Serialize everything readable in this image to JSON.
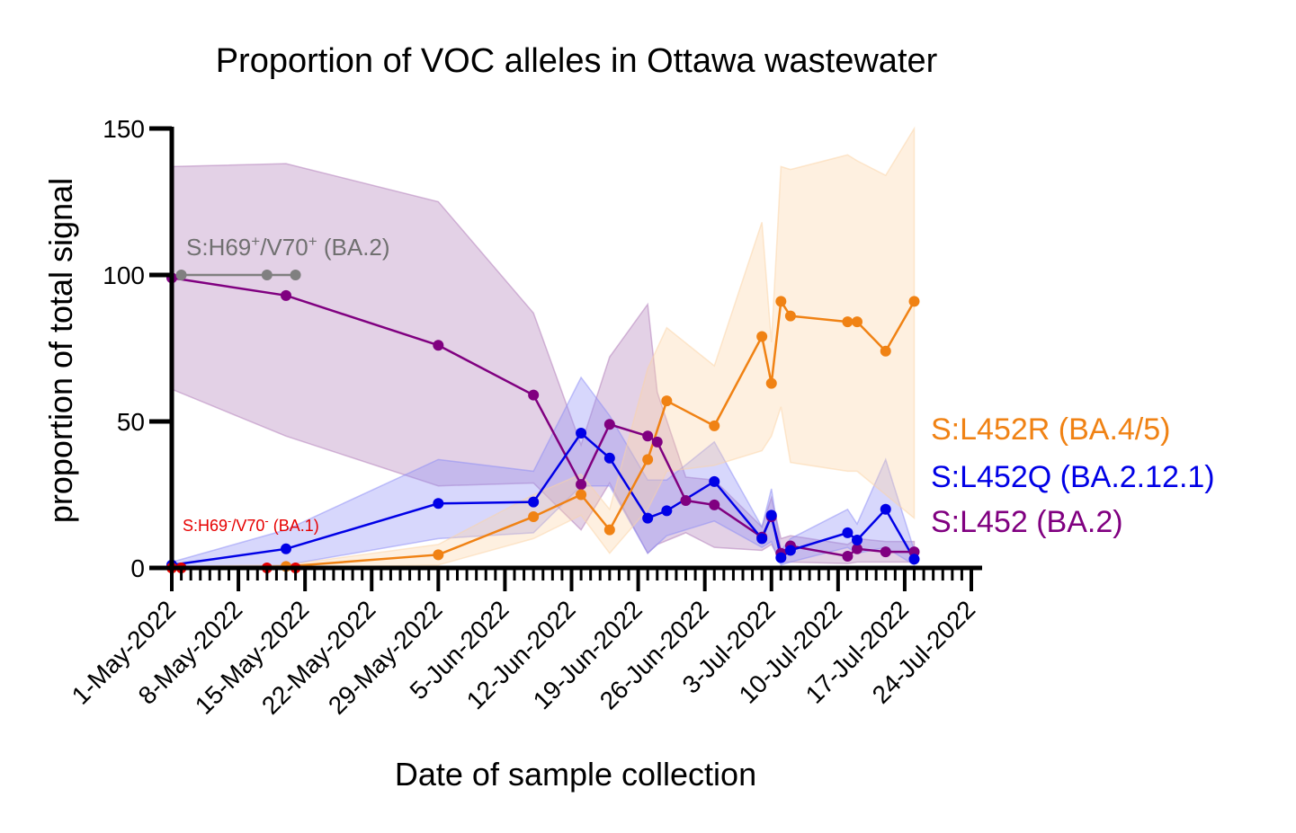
{
  "chart_data": {
    "type": "line",
    "title": "Proportion of VOC alleles in Ottawa wastewater",
    "xlabel": "Date of sample collection",
    "ylabel": "proportion of total signal",
    "ylim": [
      0,
      150
    ],
    "xlim_days": [
      0,
      84
    ],
    "yticks": [
      0,
      50,
      100,
      150
    ],
    "xticks": [
      {
        "day": 0,
        "label": "1-May-2022"
      },
      {
        "day": 7,
        "label": "8-May-2022"
      },
      {
        "day": 14,
        "label": "15-May-2022"
      },
      {
        "day": 21,
        "label": "22-May-2022"
      },
      {
        "day": 28,
        "label": "29-May-2022"
      },
      {
        "day": 35,
        "label": "5-Jun-2022"
      },
      {
        "day": 42,
        "label": "12-Jun-2022"
      },
      {
        "day": 49,
        "label": "19-Jun-2022"
      },
      {
        "day": 56,
        "label": "26-Jun-2022"
      },
      {
        "day": 63,
        "label": "3-Jul-2022"
      },
      {
        "day": 70,
        "label": "10-Jul-2022"
      },
      {
        "day": 77,
        "label": "17-Jul-2022"
      },
      {
        "day": 84,
        "label": "24-Jul-2022"
      }
    ],
    "legend_position": "right",
    "series": [
      {
        "name": "S:L452 (BA.2)",
        "color": "#800080",
        "band_color": "#b07ab8",
        "x": [
          0,
          12,
          28,
          38,
          43,
          46,
          50,
          51,
          54,
          57,
          62,
          63,
          64,
          65,
          71,
          72,
          75,
          78
        ],
        "y": [
          99,
          93,
          76,
          59,
          28.5,
          49,
          45,
          43,
          23,
          21.5,
          10.5,
          17.5,
          5,
          7.5,
          4,
          6.5,
          5.5,
          5.5
        ],
        "lower": [
          61,
          45,
          28,
          29,
          13,
          29,
          5,
          8,
          12,
          7,
          6,
          8,
          2,
          2,
          1.5,
          2,
          2,
          2
        ],
        "upper": [
          137,
          138,
          125,
          87,
          42,
          72,
          90,
          60,
          31,
          30,
          14,
          24,
          10,
          11,
          8,
          10,
          9,
          9
        ]
      },
      {
        "name": "S:L452Q (BA.2.12.1)",
        "color": "#0000e6",
        "band_color": "#8c8cf5",
        "x": [
          0,
          12,
          28,
          38,
          43,
          46,
          50,
          52,
          57,
          62,
          63,
          64,
          65,
          71,
          72,
          75,
          78
        ],
        "y": [
          1,
          6.5,
          22,
          22.5,
          46,
          37.5,
          17,
          19.5,
          29.5,
          10,
          18,
          3.5,
          6,
          12,
          9.5,
          20,
          3
        ],
        "lower": [
          0,
          1,
          10,
          12,
          28,
          28,
          5,
          11,
          16,
          7,
          9,
          1,
          2,
          7,
          5,
          7,
          1
        ],
        "upper": [
          2,
          13,
          37,
          33,
          65,
          52,
          30,
          30,
          43,
          14,
          27,
          6,
          10,
          20,
          15,
          37,
          6
        ]
      },
      {
        "name": "S:L452R (BA.4/5)",
        "color": "#f08214",
        "band_color": "#fbd3a6",
        "x": [
          0,
          12,
          28,
          38,
          43,
          46,
          50,
          52,
          57,
          62,
          63,
          64,
          65,
          71,
          72,
          75,
          78
        ],
        "y": [
          0,
          0.5,
          4.5,
          17.5,
          25,
          13,
          37,
          57,
          48.5,
          79,
          63,
          91,
          86,
          84,
          84,
          74,
          91
        ],
        "lower": [
          0,
          0,
          1,
          10,
          18,
          5,
          20,
          33,
          35,
          40,
          45,
          55,
          36,
          33,
          33,
          25,
          17
        ],
        "upper": [
          0.5,
          1,
          8,
          25,
          32,
          20,
          68,
          82,
          69,
          118,
          77,
          137,
          136,
          141,
          139,
          134,
          150
        ]
      },
      {
        "name": "S:H69+/V70+ (BA.2)",
        "color": "#808080",
        "band_color": "#c0c0c0",
        "x": [
          1,
          10,
          13
        ],
        "y": [
          100,
          100,
          100
        ]
      },
      {
        "name": "S:H69-/V70- (BA.1)",
        "color": "#e60000",
        "band_color": "#f5a0a0",
        "x": [
          0,
          1,
          10,
          13
        ],
        "y": [
          0,
          0,
          0,
          0
        ]
      }
    ]
  },
  "annotations": {
    "ba2_h69": {
      "base": "S:H69",
      "sup1": "+",
      "mid": "/V70",
      "sup2": "+",
      "tail": " (BA.2)",
      "color": "#707070"
    },
    "ba1_h69": {
      "base": "S:H69",
      "sup1": "-",
      "mid": "/V70",
      "sup2": "-",
      "tail": " (BA.1)",
      "color": "#e60000"
    }
  },
  "legend": [
    {
      "label": "S:L452R (BA.4/5)",
      "color": "#f08214"
    },
    {
      "label": "S:L452Q (BA.2.12.1)",
      "color": "#0000e6"
    },
    {
      "label": "S:L452 (BA.2)",
      "color": "#800080"
    }
  ]
}
